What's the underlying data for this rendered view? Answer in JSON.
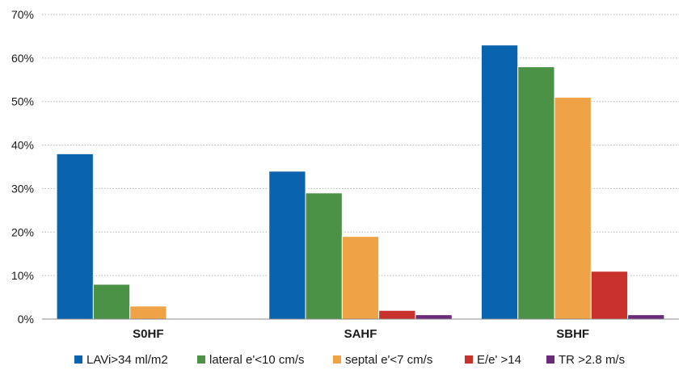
{
  "chart_data": {
    "type": "bar",
    "categories": [
      "S0HF",
      "SAHF",
      "SBHF"
    ],
    "series": [
      {
        "name": "LAVi>34 ml/m2",
        "color": "#0a63ad",
        "values": [
          38,
          34,
          63
        ]
      },
      {
        "name": "lateral e'<10 cm/s",
        "color": "#4b9146",
        "values": [
          8,
          29,
          58
        ]
      },
      {
        "name": "septal e'<7 cm/s",
        "color": "#f0a346",
        "values": [
          3,
          19,
          51
        ]
      },
      {
        "name": "E/e' >14",
        "color": "#c9312c",
        "values": [
          0,
          2,
          11
        ]
      },
      {
        "name": "TR >2.8 m/s",
        "color": "#6b2a7a",
        "values": [
          0,
          1,
          1
        ]
      }
    ],
    "yticks": [
      "0%",
      "10%",
      "20%",
      "30%",
      "40%",
      "50%",
      "60%",
      "70%"
    ],
    "ylim": [
      0,
      70
    ],
    "grid": true,
    "legend": "bottom"
  }
}
